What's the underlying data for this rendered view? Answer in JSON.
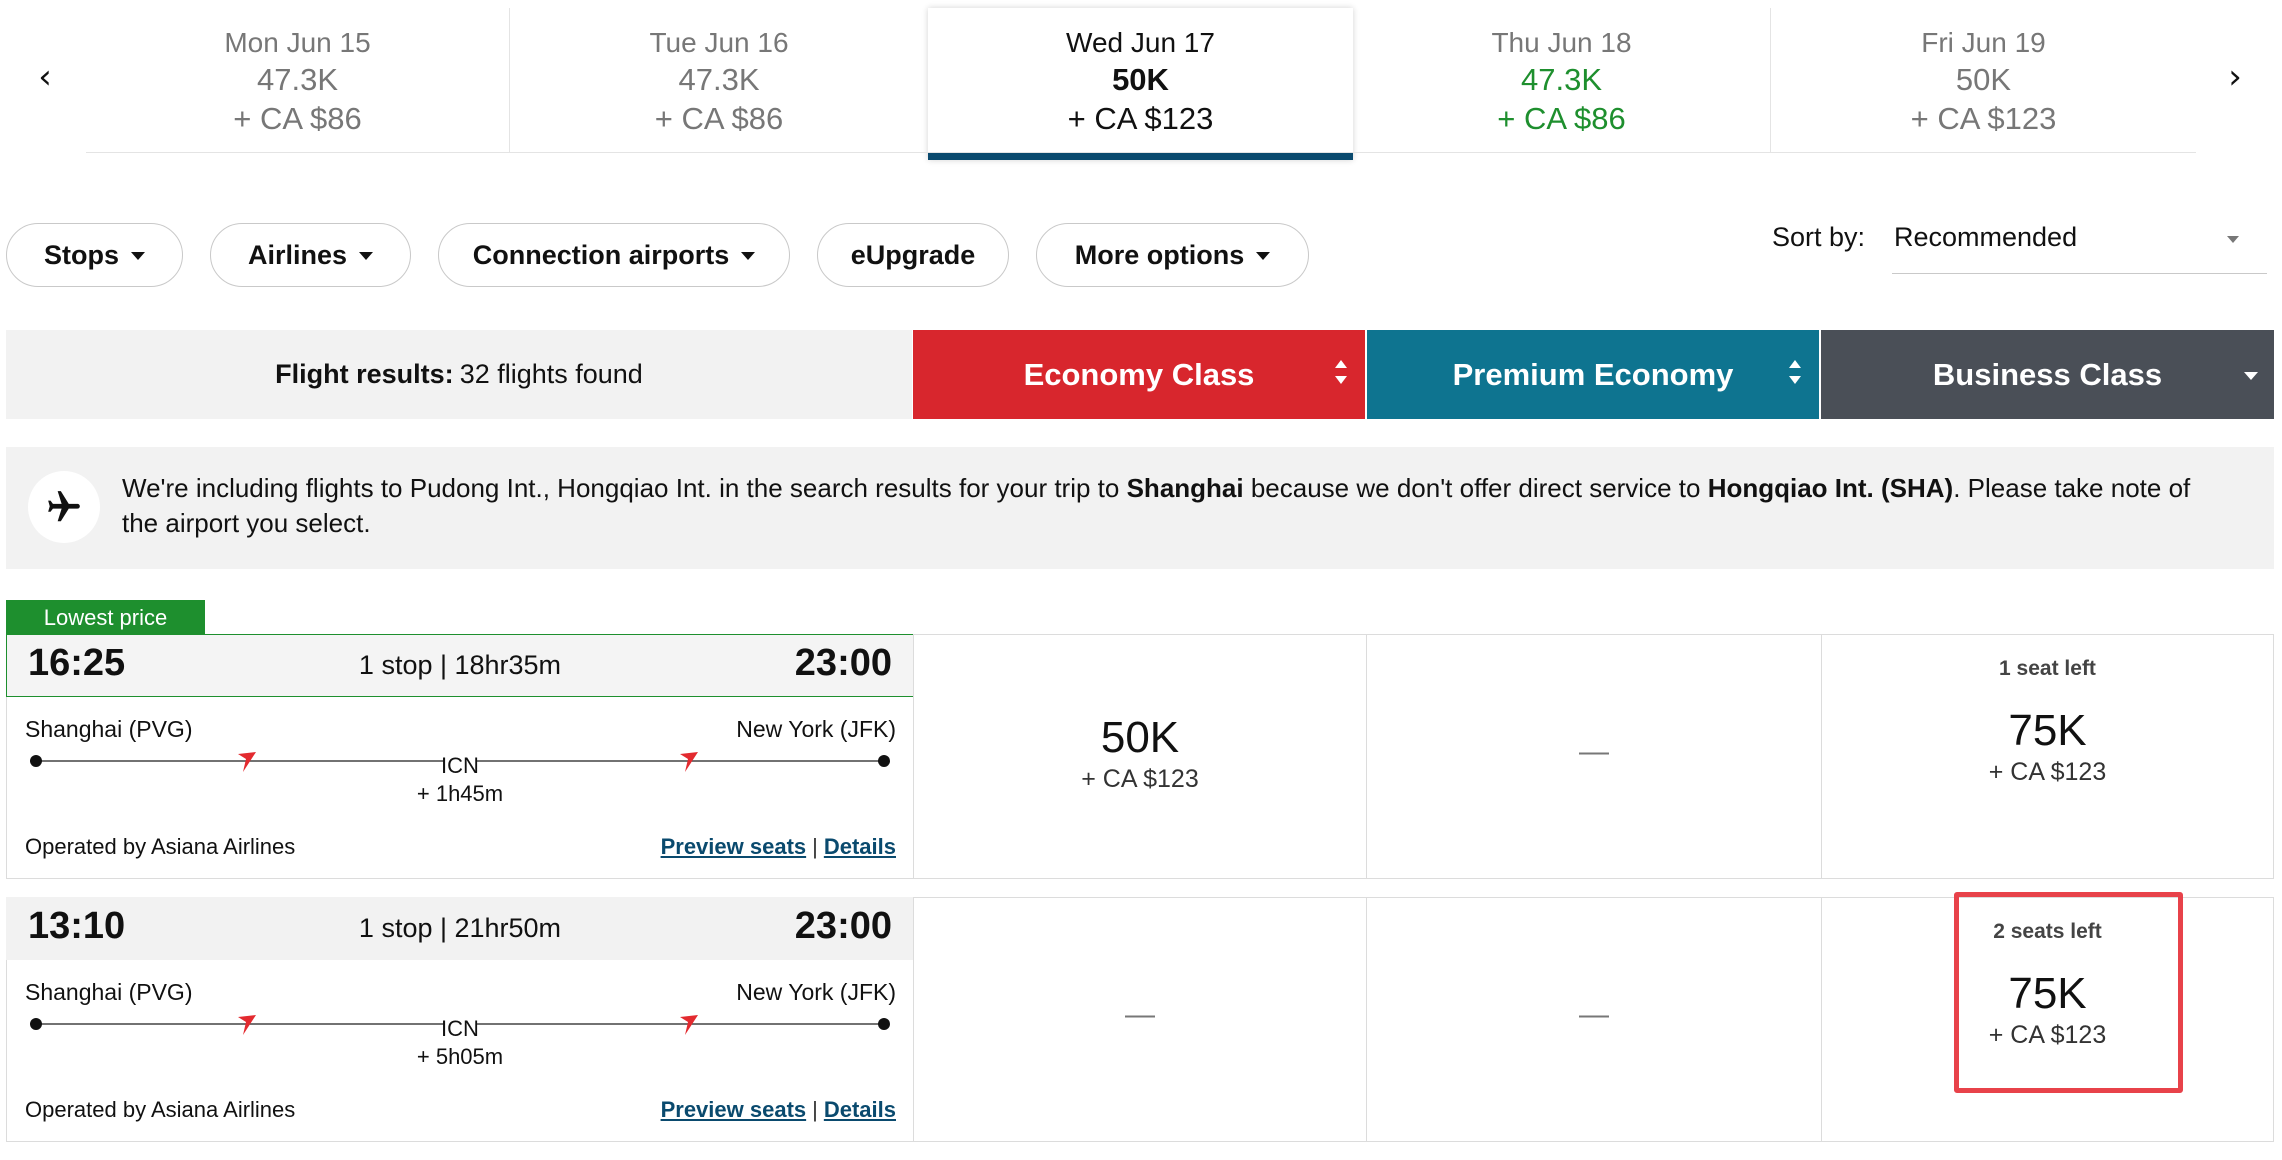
{
  "date_strip": {
    "days": [
      {
        "date": "Mon Jun 15",
        "points": "47.3K",
        "taxes": "+ CA $86"
      },
      {
        "date": "Tue Jun 16",
        "points": "47.3K",
        "taxes": "+ CA $86"
      },
      {
        "date": "Wed Jun 17",
        "points": "50K",
        "taxes": "+ CA $123"
      },
      {
        "date": "Thu Jun 18",
        "points": "47.3K",
        "taxes": "+ CA $86"
      },
      {
        "date": "Fri Jun 19",
        "points": "50K",
        "taxes": "+ CA $123"
      }
    ],
    "prev_glyph": "‹",
    "next_glyph": "›",
    "selected_color": "#0a4a6e",
    "lowest_color": "#1e8f2e"
  },
  "filters": {
    "stops": "Stops",
    "airlines": "Airlines",
    "connection_airports": "Connection airports",
    "eupgrade": "eUpgrade",
    "more_options": "More options"
  },
  "sort": {
    "label": "Sort by:",
    "value": "Recommended"
  },
  "results": {
    "label": "Flight results:",
    "count": "32 flights found"
  },
  "cabins": {
    "economy": "Economy Class",
    "premium": "Premium Economy",
    "business": "Business Class",
    "economy_color": "#d8262d",
    "premium_color": "#0e7490",
    "business_color": "#4a4f57"
  },
  "notice": {
    "part1": "We're including flights to Pudong Int., Hongqiao Int. in the search results for your trip to ",
    "city": "Shanghai",
    "part2": " because we don't offer direct service to ",
    "airport": "Hongqiao Int. (SHA)",
    "part3": ". Please take note of the airport you select.",
    "icon": "airplane-icon"
  },
  "badge": "Lowest price",
  "flights": [
    {
      "departure": "16:25",
      "summary": "1 stop | 18hr35m",
      "arrival": "23:00",
      "origin": "Shanghai (PVG)",
      "destination": "New York (JFK)",
      "connection": "ICN",
      "layover": "+ 1h45m",
      "operator": "Operated by Asiana Airlines",
      "preview": "Preview seats",
      "separator": "|",
      "details": "Details",
      "economy": {
        "points": "50K",
        "taxes": "+ CA $123"
      },
      "premium": {
        "dash": "—"
      },
      "business": {
        "seats": "1 seat left",
        "points": "75K",
        "taxes": "+ CA $123"
      }
    },
    {
      "departure": "13:10",
      "summary": "1 stop | 21hr50m",
      "arrival": "23:00",
      "origin": "Shanghai (PVG)",
      "destination": "New York (JFK)",
      "connection": "ICN",
      "layover": "+ 5h05m",
      "operator": "Operated by Asiana Airlines",
      "preview": "Preview seats",
      "separator": "|",
      "details": "Details",
      "economy": {
        "dash": "—"
      },
      "premium": {
        "dash": "—"
      },
      "business": {
        "seats": "2 seats left",
        "points": "75K",
        "taxes": "+ CA $123"
      }
    }
  ]
}
